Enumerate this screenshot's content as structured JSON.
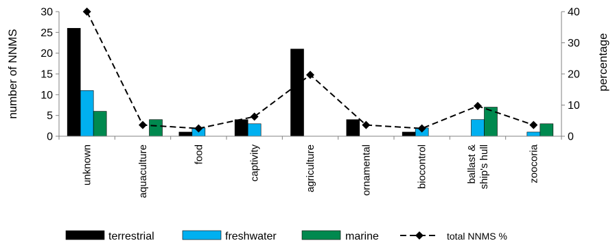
{
  "chart_data": {
    "type": "bar",
    "categories": [
      "unknown",
      "aquaculture",
      "food",
      "captivity",
      "agriculture",
      "ornamental",
      "biocontrol",
      "ballast & ship's hull",
      "zoocoria"
    ],
    "category_label_lines": [
      [
        "unknown"
      ],
      [
        "aquaculture"
      ],
      [
        "food"
      ],
      [
        "captivity"
      ],
      [
        "agriculture"
      ],
      [
        "ornamental"
      ],
      [
        "biocontrol"
      ],
      [
        "ballast &",
        "ship's hull"
      ],
      [
        "zoocoria"
      ]
    ],
    "series": [
      {
        "name": "terrestrial",
        "type": "bar",
        "axis": "left",
        "color": "#000000",
        "values": [
          26,
          0,
          1,
          4,
          21,
          4,
          1,
          0,
          0
        ]
      },
      {
        "name": "freshwater",
        "type": "bar",
        "axis": "left",
        "color": "#00b0f0",
        "values": [
          11,
          0,
          2,
          3,
          0,
          0,
          2,
          4,
          1
        ]
      },
      {
        "name": "marine",
        "type": "bar",
        "axis": "left",
        "color": "#00894f",
        "values": [
          6,
          4,
          0,
          0,
          0,
          0,
          0,
          7,
          3
        ]
      },
      {
        "name": "total NNMS %",
        "type": "line",
        "axis": "right",
        "color": "#000000",
        "marker": "diamond",
        "line_style": "dashed",
        "values": [
          40,
          3.6,
          2.5,
          6.3,
          19.7,
          3.6,
          2.5,
          9.7,
          3.6
        ]
      }
    ],
    "ylabel": "number of NNMS",
    "y2label": "percentage",
    "ylim": [
      0,
      30
    ],
    "y2lim": [
      0,
      40
    ],
    "yticks": [
      0,
      5,
      10,
      15,
      20,
      25,
      30
    ],
    "y2ticks": [
      0,
      10,
      20,
      30,
      40
    ],
    "grid": false,
    "legend_position": "bottom"
  }
}
